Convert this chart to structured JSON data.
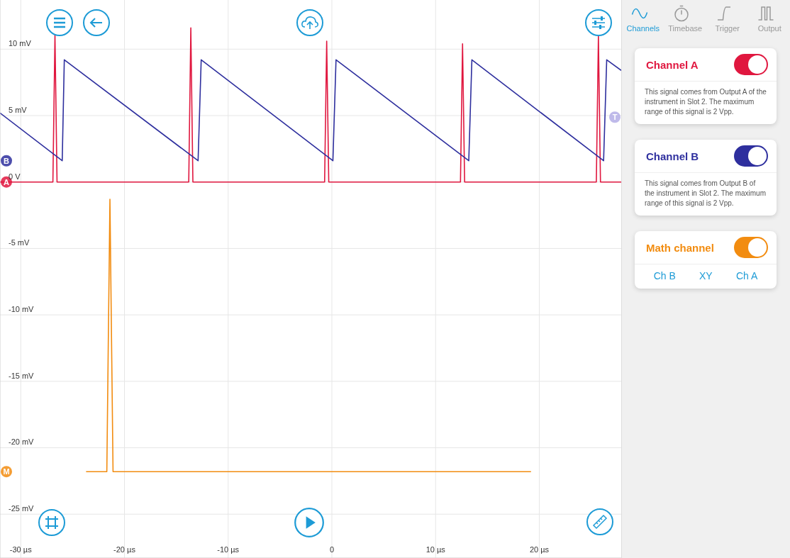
{
  "chart_data": {
    "type": "line",
    "marker": "none",
    "line_style": "solid",
    "grid": true,
    "legend": "right",
    "xlim": [
      -32,
      27.9
    ],
    "ylim": [
      -28.3,
      13.7
    ],
    "xticks": [
      {
        "value": -30,
        "label": "-30 µs"
      },
      {
        "value": -20,
        "label": "-20 µs"
      },
      {
        "value": -10,
        "label": "-10 µs"
      },
      0,
      {
        "value": 10,
        "label": "10 µs"
      },
      {
        "value": 20,
        "label": "20 µs"
      }
    ],
    "yticks": [
      {
        "value": 10,
        "label": "10 mV"
      },
      {
        "value": 5,
        "label": "5 mV"
      },
      {
        "value": 0,
        "label": "0 V"
      },
      {
        "value": -5,
        "label": "-5 mV"
      },
      {
        "value": -10,
        "label": "-10 mV"
      },
      {
        "value": -15,
        "label": "-15 mV"
      },
      {
        "value": -20,
        "label": "-20 mV"
      },
      {
        "value": -25,
        "label": "-25 mV"
      }
    ],
    "series": [
      {
        "name": "Channel A",
        "color": "#e0173f",
        "x": [
          -32,
          -26.9,
          -26.7,
          -26.5,
          -13.8,
          -13.6,
          -13.4,
          -0.7,
          -0.5,
          -0.3,
          12.4,
          12.6,
          12.8,
          25.5,
          25.7,
          25.9,
          27.9
        ],
        "values": [
          0,
          0,
          11.1,
          0,
          0,
          11.6,
          0,
          0,
          10.6,
          0,
          0,
          10.4,
          0,
          0,
          11,
          0,
          0
        ]
      },
      {
        "name": "Channel B",
        "color": "#2e2f9e",
        "x": [
          -32,
          -26.0,
          -25.8,
          -12.9,
          -12.6,
          0.1,
          0.4,
          13.2,
          13.5,
          26.2,
          26.5,
          27.9
        ],
        "values": [
          5.2,
          1.6,
          9.2,
          1.6,
          9.2,
          1.6,
          9.2,
          1.6,
          9.2,
          1.6,
          9.2,
          8.4
        ]
      },
      {
        "name": "Math channel",
        "color": "#f28c10",
        "x": [
          -23.7,
          -21.7,
          -21.4,
          -21.1,
          19.2
        ],
        "values": [
          -21.8,
          -21.8,
          -1.3,
          -21.8,
          -21.8
        ]
      }
    ],
    "annotations": [
      "Channels",
      "Timebase",
      "Trigger",
      "Output",
      "This signal comes from Output A of the instrument in Slot 2. The maximum range of this signal is 2 Vpp.",
      "This signal comes from Output B of the instrument in Slot 2. The maximum range of this signal is 2 Vpp.",
      "Ch B",
      "XY",
      "Ch A",
      "A",
      "B",
      "M",
      "T"
    ]
  }
}
